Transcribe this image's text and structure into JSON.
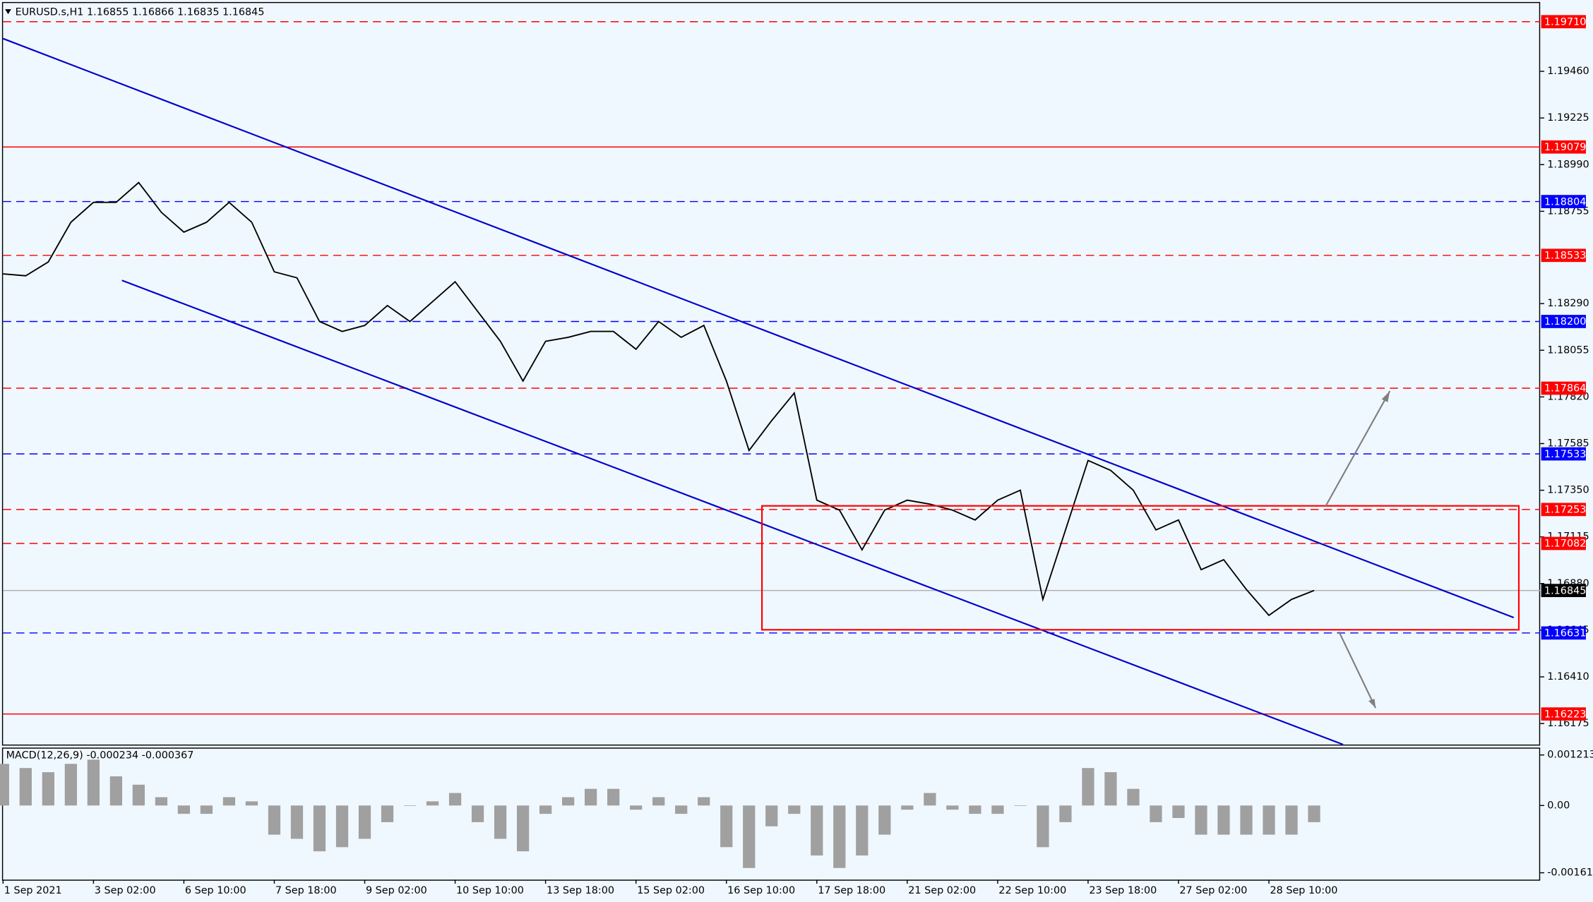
{
  "chart_data": [
    {
      "type": "line",
      "title": "EURUSD.s,H1  1.16855 1.16866 1.16835 1.16845",
      "categories": [
        "1 Sep 2021",
        null,
        null,
        null,
        "3 Sep 02:00",
        null,
        null,
        null,
        "6 Sep 10:00",
        null,
        null,
        null,
        "7 Sep 18:00",
        null,
        null,
        null,
        "9 Sep 02:00",
        null,
        null,
        null,
        "10 Sep 10:00",
        null,
        null,
        null,
        "13 Sep 18:00",
        null,
        null,
        null,
        "15 Sep 02:00",
        null,
        null,
        null,
        "16 Sep 10:00",
        null,
        null,
        null,
        "17 Sep 18:00",
        null,
        null,
        null,
        "21 Sep 02:00",
        null,
        null,
        null,
        "22 Sep 10:00",
        null,
        null,
        null,
        "23 Sep 18:00",
        null,
        null,
        null,
        "27 Sep 02:00",
        null,
        null,
        null,
        "28 Sep 10:00",
        null,
        null
      ],
      "values": [
        1.1844,
        1.1843,
        1.185,
        1.187,
        1.188,
        1.188,
        1.189,
        1.1875,
        1.1865,
        1.187,
        1.188,
        1.187,
        1.1845,
        1.1842,
        1.182,
        1.1815,
        1.1818,
        1.1828,
        1.182,
        1.183,
        1.184,
        1.1825,
        1.181,
        1.179,
        1.181,
        1.1812,
        1.1815,
        1.1815,
        1.1806,
        1.182,
        1.1812,
        1.1818,
        1.179,
        1.1755,
        1.177,
        1.1784,
        1.173,
        1.1725,
        1.1705,
        1.1725,
        1.173,
        1.1728,
        1.1725,
        1.172,
        1.173,
        1.1735,
        1.168,
        1.1715,
        1.175,
        1.1745,
        1.1735,
        1.1715,
        1.172,
        1.1695,
        1.17,
        1.1685,
        1.1672,
        1.168,
        1.16845
      ],
      "color": "#000000",
      "ylim": [
        1.16069,
        1.19809
      ],
      "yticks": [
        {
          "value": 1.1946,
          "label": "1.19460"
        },
        {
          "value": 1.19225,
          "label": "1.19225"
        },
        {
          "value": 1.1899,
          "label": "1.18990"
        },
        {
          "value": 1.18755,
          "label": "1.18755"
        },
        {
          "value": 1.1829,
          "label": "1.18290"
        },
        {
          "value": 1.18055,
          "label": "1.18055"
        },
        {
          "value": 1.1782,
          "label": "1.17820"
        },
        {
          "value": 1.17585,
          "label": "1.17585"
        },
        {
          "value": 1.1735,
          "label": "1.17350"
        },
        {
          "value": 1.17115,
          "label": "1.17115"
        },
        {
          "value": 1.1688,
          "label": "1.16880"
        },
        {
          "value": 1.16645,
          "label": "1.16645"
        },
        {
          "value": 1.1641,
          "label": "1.16410"
        },
        {
          "value": 1.16175,
          "label": "1.16175"
        }
      ],
      "levels": [
        {
          "value": 1.1971,
          "label": "1.19710",
          "color": "#ff0000",
          "style": "dashed"
        },
        {
          "value": 1.19079,
          "label": "1.19079",
          "color": "#ff0000",
          "style": "solid"
        },
        {
          "value": 1.18804,
          "label": "1.18804",
          "color": "#0000ff",
          "style": "dashed"
        },
        {
          "value": 1.18533,
          "label": "1.18533",
          "color": "#ff0000",
          "style": "dashed"
        },
        {
          "value": 1.182,
          "label": "1.18200",
          "color": "#0000ff",
          "style": "dashed"
        },
        {
          "value": 1.17864,
          "label": "1.17864",
          "color": "#ff0000",
          "style": "dashed"
        },
        {
          "value": 1.17533,
          "label": "1.17533",
          "color": "#0000ff",
          "style": "dashed"
        },
        {
          "value": 1.17253,
          "label": "1.17253",
          "color": "#ff0000",
          "style": "dashed"
        },
        {
          "value": 1.17082,
          "label": "1.17082",
          "color": "#ff0000",
          "style": "dashed"
        },
        {
          "value": 1.16845,
          "label": "1.16845",
          "color": "#000000",
          "style": "current"
        },
        {
          "value": 1.16631,
          "label": "1.16631",
          "color": "#0000ff",
          "style": "dashed"
        },
        {
          "value": 1.16223,
          "label": "1.16223",
          "color": "#ff0000",
          "style": "solid"
        }
      ]
    },
    {
      "type": "bar",
      "title": "MACD(12,26,9) -0.000234 -0.000367",
      "values": [
        0.001,
        0.0009,
        0.0008,
        0.001,
        0.0011,
        0.0007,
        0.0005,
        0.0002,
        -0.0002,
        -0.0002,
        0.0002,
        0.0001,
        -0.0007,
        -0.0008,
        -0.0011,
        -0.001,
        -0.0008,
        -0.0004,
        0,
        0.0001,
        0.0003,
        -0.0004,
        -0.0008,
        -0.0011,
        -0.0002,
        0.0002,
        0.0004,
        0.0004,
        -0.0001,
        0.0002,
        -0.0002,
        0.0002,
        -0.001,
        -0.0015,
        -0.0005,
        -0.0002,
        -0.0012,
        -0.0015,
        -0.0012,
        -0.0007,
        -0.0001,
        0.0003,
        -0.0001,
        -0.0002,
        -0.0002,
        0,
        -0.001,
        -0.0004,
        0.0009,
        0.0008,
        0.0004,
        -0.0004,
        -0.0003,
        -0.0007,
        -0.0007,
        -0.0007,
        -0.0007,
        -0.0007,
        -0.0004
      ],
      "color": "#a0a0a0",
      "ylim": [
        -0.00178,
        0.00139
      ],
      "yticks": [
        0.001213,
        {
          "value": 0,
          "label": "0.00"
        },
        -0.001615
      ]
    }
  ]
}
